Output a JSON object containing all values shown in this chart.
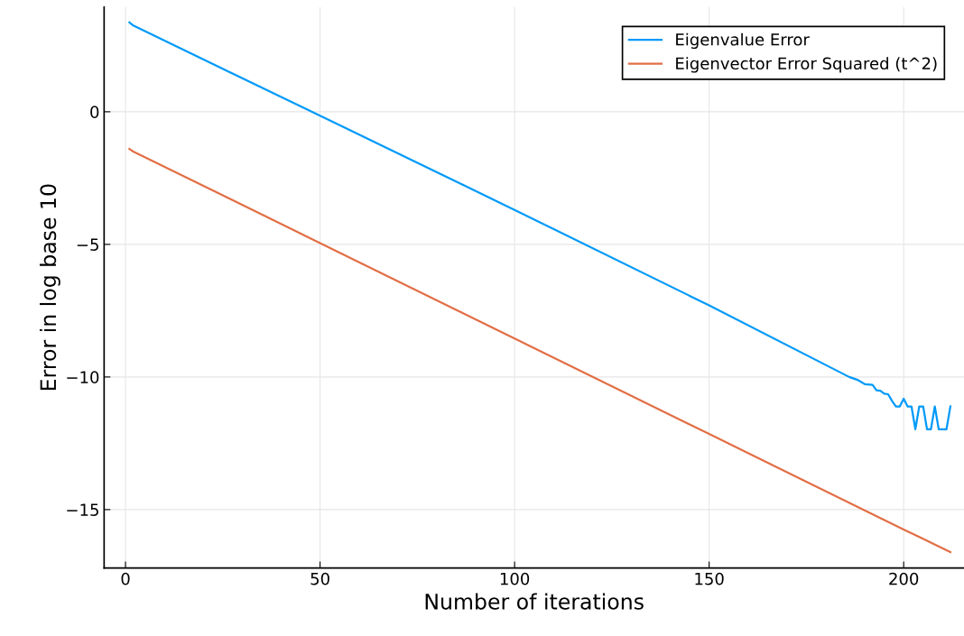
{
  "chart_data": {
    "type": "line",
    "xlabel": "Number of iterations",
    "ylabel": "Error in log base 10",
    "xlim": [
      -5.5,
      215.5
    ],
    "ylim": [
      -17.2,
      3.95
    ],
    "xticks": [
      0,
      50,
      100,
      150,
      200
    ],
    "yticks": [
      0,
      {
        "value": -5,
        "label": "−5"
      },
      {
        "value": -10,
        "label": "−10"
      },
      {
        "value": -15,
        "label": "−15"
      }
    ],
    "grid": true,
    "legend": "top right",
    "marker": "none",
    "line_style": "solid",
    "series": [
      {
        "name": "Eigenvalue Error",
        "color": "#009af9",
        "x": [
          1,
          2,
          50,
          100,
          150,
          186,
          188,
          190,
          192,
          193,
          194,
          195,
          196,
          197,
          198,
          199,
          200,
          201,
          202,
          203,
          204,
          205,
          206,
          207,
          208,
          209,
          210,
          211,
          212
        ],
        "values": [
          3.37,
          3.25,
          -0.15,
          -3.7,
          -7.3,
          -10.0,
          -10.1,
          -10.27,
          -10.3,
          -10.5,
          -10.52,
          -10.63,
          -10.65,
          -10.9,
          -11.11,
          -11.11,
          -10.82,
          -11.11,
          -11.11,
          -11.97,
          -11.11,
          -11.11,
          -11.97,
          -11.97,
          -11.11,
          -11.97,
          -11.97,
          -11.97,
          -11.11
        ]
      },
      {
        "name": "Eigenvector Error Squared (t^2)",
        "color": "#e26f46",
        "x": [
          1,
          2,
          50,
          100,
          150,
          200,
          212
        ],
        "values": [
          -1.4,
          -1.5,
          -4.95,
          -8.55,
          -12.15,
          -15.75,
          -16.6
        ]
      }
    ]
  }
}
